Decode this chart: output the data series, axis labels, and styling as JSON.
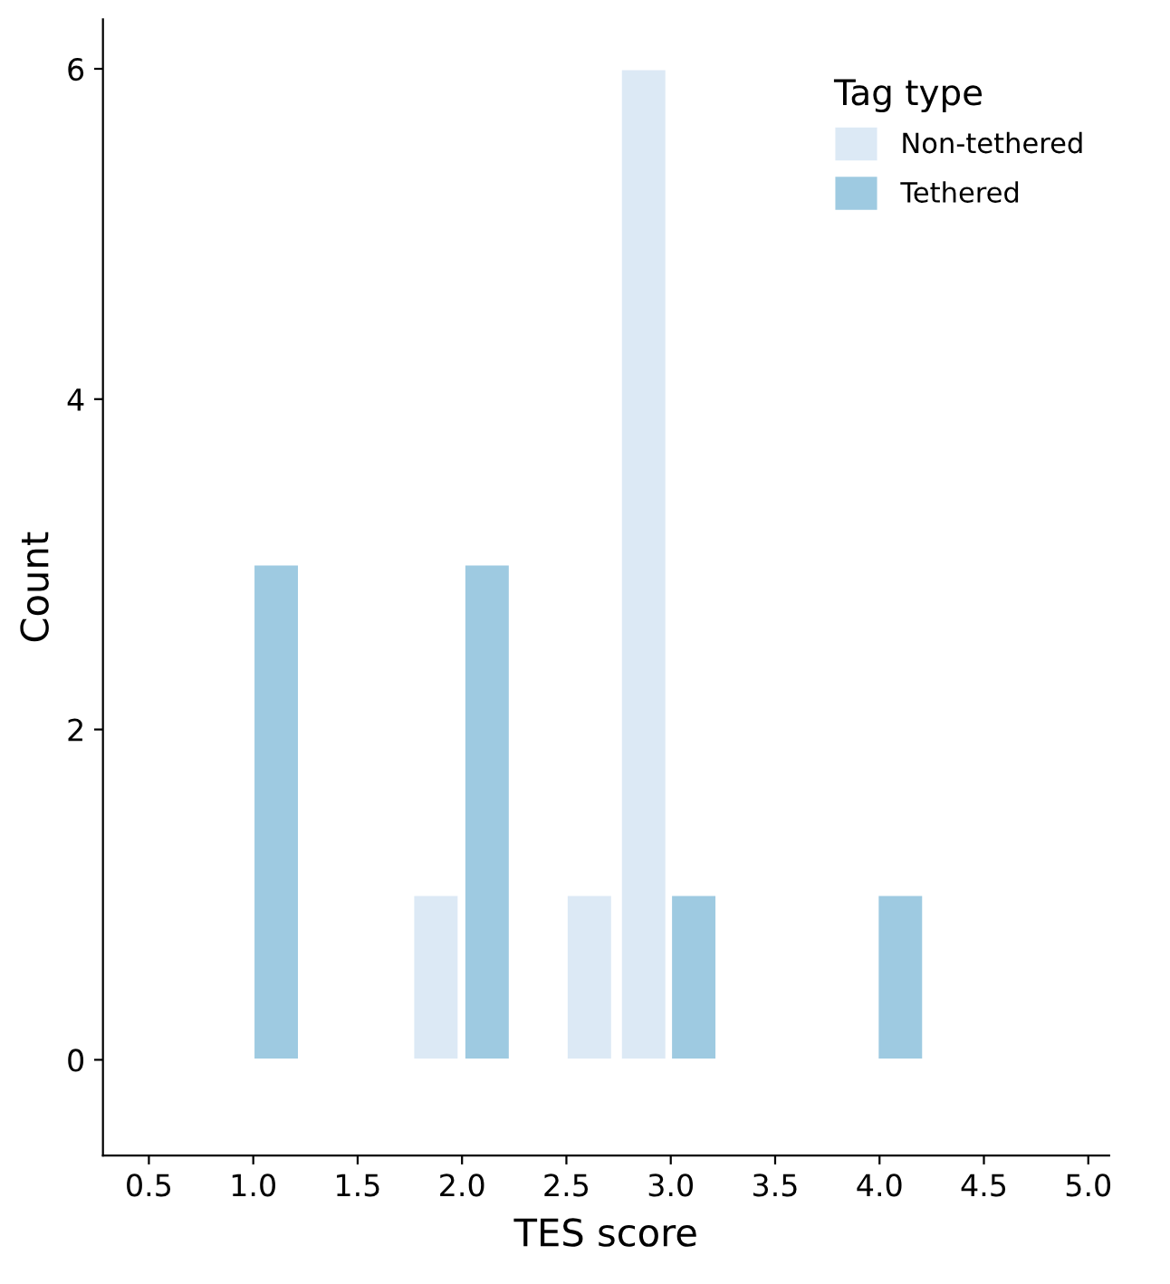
{
  "chart_data": {
    "type": "bar",
    "xlabel": "TES score",
    "ylabel": "Count",
    "legend_title": "Tag type",
    "legend": "top right",
    "grid": false,
    "series": [
      {
        "name": "Non-tethered",
        "color": "#dce9f5",
        "x": [
          1.875,
          2.61,
          2.87
        ],
        "values": [
          1,
          1,
          6
        ]
      },
      {
        "name": "Tethered",
        "color": "#9ecae1",
        "x": [
          1.11,
          2.12,
          3.11,
          4.1
        ],
        "values": [
          3,
          3,
          1,
          1
        ]
      }
    ],
    "xlim": [
      0.28,
      5.1
    ],
    "xticks": [
      {
        "value": 0.5,
        "label": "0.5"
      },
      {
        "value": 1,
        "label": "1.0"
      },
      {
        "value": 1.5,
        "label": "1.5"
      },
      {
        "value": 2,
        "label": "2.0"
      },
      {
        "value": 2.5,
        "label": "2.5"
      },
      {
        "value": 3,
        "label": "3.0"
      },
      {
        "value": 3.5,
        "label": "3.5"
      },
      {
        "value": 4,
        "label": "4.0"
      },
      {
        "value": 4.5,
        "label": "4.5"
      },
      {
        "value": 5,
        "label": "5.0"
      }
    ],
    "ylim": [
      -0.58,
      6.3
    ],
    "yticks": [
      0,
      2,
      4,
      6
    ]
  }
}
